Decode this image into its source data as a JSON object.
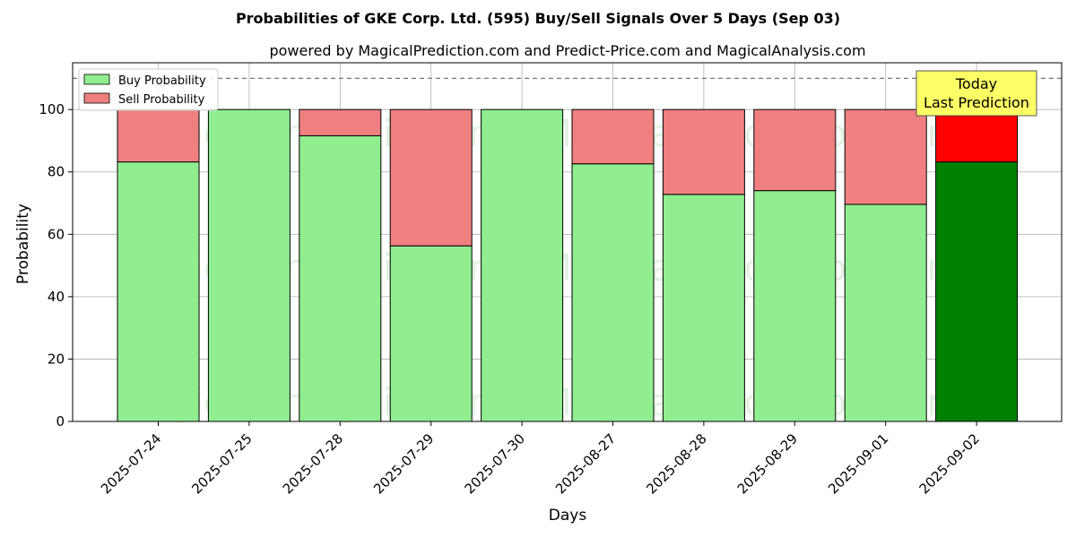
{
  "chart_data": {
    "type": "bar",
    "stacked": true,
    "title": "Probabilities of GKE Corp. Ltd. (595) Buy/Sell Signals Over 5 Days (Sep 03)",
    "subtitle": "powered by MagicalPrediction.com and Predict-Price.com and MagicalAnalysis.com",
    "xlabel": "Days",
    "ylabel": "Probability",
    "ylim": [
      0,
      115
    ],
    "yticks": [
      "0",
      "20",
      "40",
      "60",
      "80",
      "100"
    ],
    "reference_line": 110,
    "grid": true,
    "legend_position": "top-left",
    "categories": [
      "2025-07-24",
      "2025-07-25",
      "2025-07-28",
      "2025-07-29",
      "2025-07-30",
      "2025-08-27",
      "2025-08-28",
      "2025-08-29",
      "2025-09-01",
      "2025-09-02"
    ],
    "series": [
      {
        "name": "Buy Probability",
        "values": [
          83.2,
          100,
          91.6,
          56.3,
          100,
          82.6,
          72.8,
          74.0,
          69.6,
          83.2
        ],
        "color": "#90ee90",
        "highlight_color": "#008000"
      },
      {
        "name": "Sell Probability",
        "values": [
          16.8,
          0,
          8.4,
          43.7,
          0,
          17.4,
          27.2,
          26.0,
          30.4,
          16.8
        ],
        "color": "#f08080",
        "highlight_color": "#ff0000"
      }
    ],
    "highlight_index": 9,
    "annotation": {
      "line1": "Today",
      "line2": "Last Prediction",
      "background": "#ffff66"
    },
    "watermarks": [
      "MagicalAnalysis.com",
      "MagicalPrediction.com",
      "MagicalAnalysis.com",
      "MagicalPrediction.com",
      "MagicalAnalysis.com",
      "MagicalPrediction.com"
    ]
  }
}
